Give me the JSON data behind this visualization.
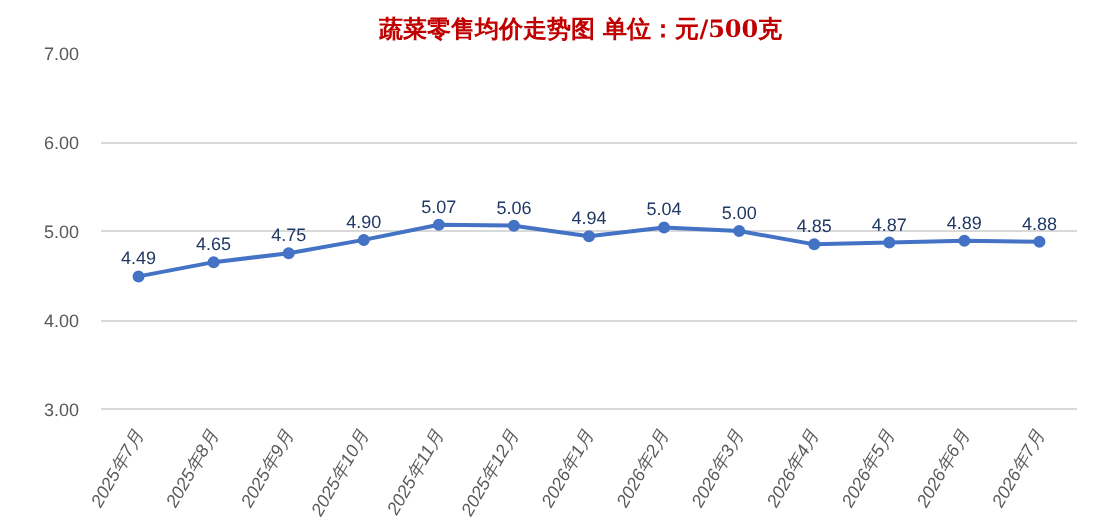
{
  "chart_data": {
    "type": "line",
    "title": "蔬菜零售均价走势图   单位：元/500克",
    "categories": [
      "2025年7月",
      "2025年8月",
      "2025年9月",
      "2025年10月",
      "2025年11月",
      "2025年12月",
      "2026年1月",
      "2026年2月",
      "2026年3月",
      "2026年4月",
      "2026年5月",
      "2026年6月",
      "2026年7月"
    ],
    "series": [
      {
        "color": "#4472c4",
        "values": [
          4.49,
          4.65,
          4.75,
          4.9,
          5.07,
          5.06,
          4.94,
          5.04,
          5.0,
          4.85,
          4.87,
          4.89,
          4.88
        ]
      }
    ],
    "value_labels": [
      "4.49",
      "4.65",
      "4.75",
      "4.90",
      "5.07",
      "5.06",
      "4.94",
      "5.04",
      "5.00",
      "4.85",
      "4.87",
      "4.89",
      "4.88"
    ],
    "ylim": [
      3,
      7
    ],
    "yticks": [
      {
        "value": 3,
        "label": "3.00"
      },
      {
        "value": 4,
        "label": "4.00"
      },
      {
        "value": 5,
        "label": "5.00"
      },
      {
        "value": 6,
        "label": "6.00"
      },
      {
        "value": 7,
        "label": "7.00"
      }
    ],
    "grid": "y",
    "marker": "circle",
    "line_style": "solid"
  }
}
